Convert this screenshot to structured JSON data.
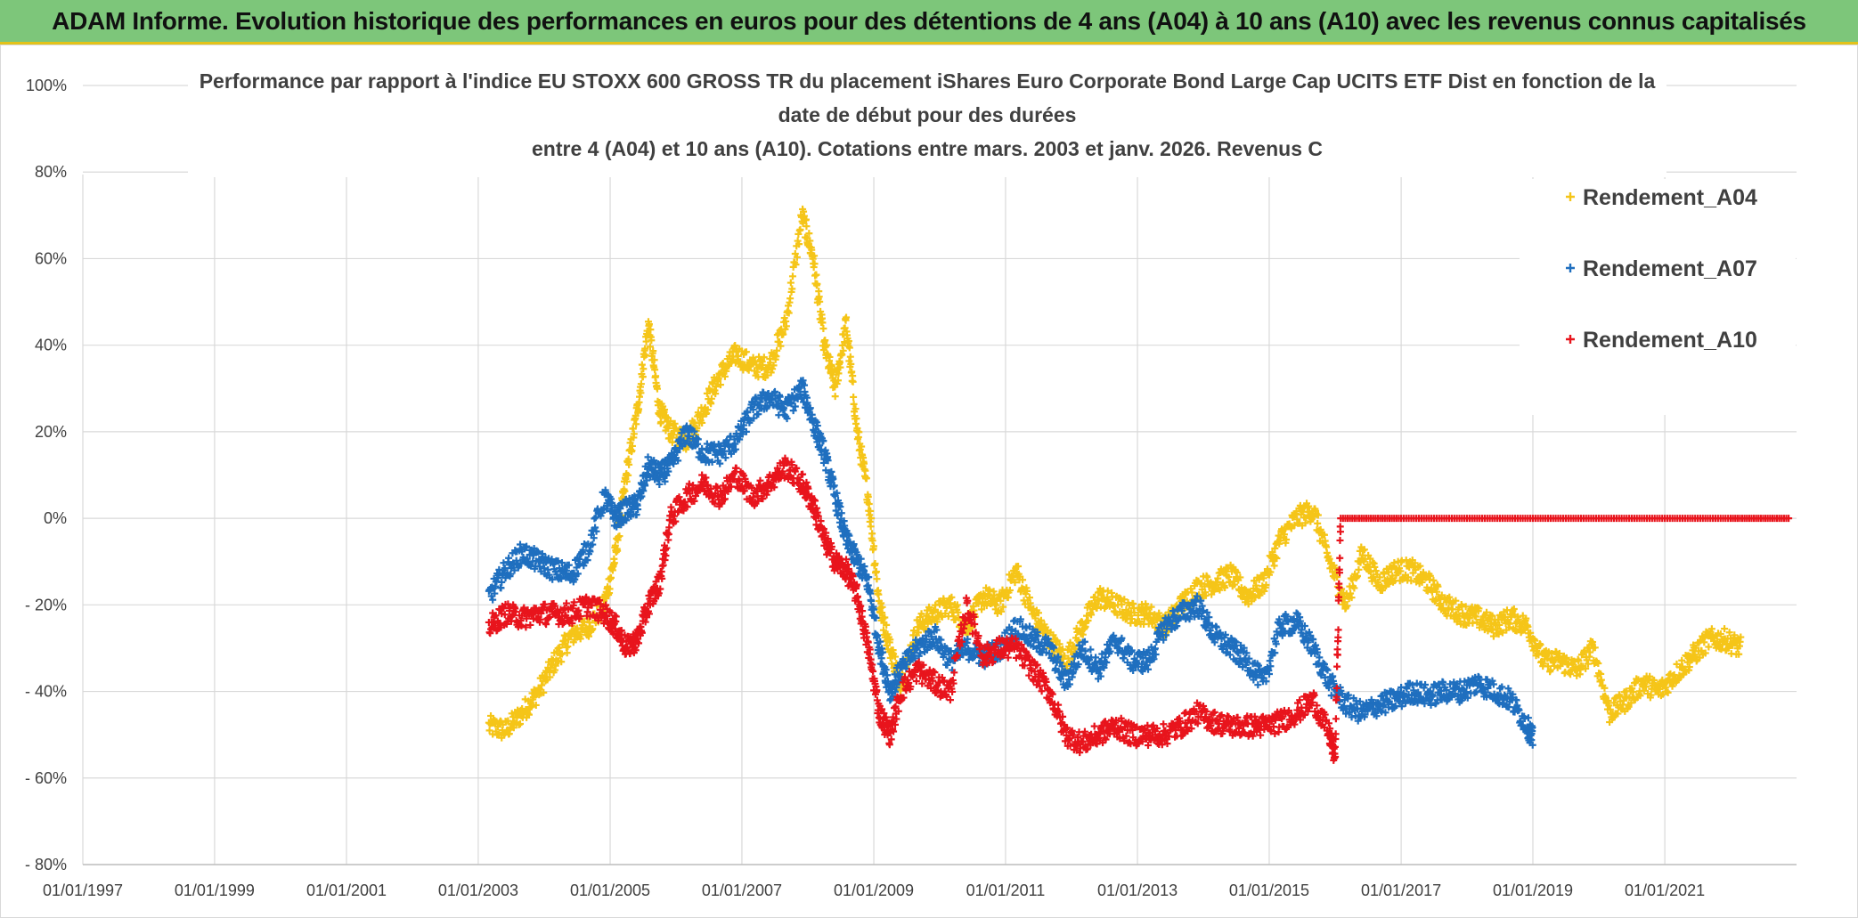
{
  "banner": {
    "title": "ADAM Informe. Evolution historique des performances en euros pour des détentions de 4 ans (A04) à 10 ans (A10) avec les revenus connus capitalisés"
  },
  "colors": {
    "banner_bg": "#7dc67a",
    "Rendement_A04": "#f5c518",
    "Rendement_A07": "#1f6fbf",
    "Rendement_A10": "#e8141c"
  },
  "chart_data": {
    "type": "scatter",
    "title_lines": [
      "Performance  par rapport à l'indice EU STOXX 600 GROSS TR  du placement iShares Euro Corporate Bond Large Cap UCITS ETF Dist en fonction de la",
      "date de début pour des durées",
      "entre 4 (A04) et 10 ans (A10). Cotations entre mars. 2003 et janv. 2026. Revenus C"
    ],
    "x_ticks": [
      "01/01/1997",
      "01/01/1999",
      "01/01/2001",
      "01/01/2003",
      "01/01/2005",
      "01/01/2007",
      "01/01/2009",
      "01/01/2011",
      "01/01/2013",
      "01/01/2015",
      "01/01/2017",
      "01/01/2019",
      "01/01/2021"
    ],
    "xlim": [
      "1997-01-01",
      "2023-01-01"
    ],
    "y_ticks": [
      "100%",
      "80%",
      "60%",
      "40%",
      "20%",
      "0%",
      "- 20%",
      "- 40%",
      "- 60%",
      "- 80%"
    ],
    "ylim": [
      -80,
      100
    ],
    "grid": true,
    "legend_position": "top-right",
    "marker": "+",
    "series": [
      {
        "name": "Rendement_A04",
        "points": [
          [
            "2003-03",
            -48
          ],
          [
            "2003-06",
            -49
          ],
          [
            "2003-09",
            -45
          ],
          [
            "2003-12",
            -40
          ],
          [
            "2004-03",
            -33
          ],
          [
            "2004-06",
            -27
          ],
          [
            "2004-09",
            -25
          ],
          [
            "2004-12",
            -20
          ],
          [
            "2005-02",
            -8
          ],
          [
            "2005-04",
            10
          ],
          [
            "2005-06",
            25
          ],
          [
            "2005-08",
            45
          ],
          [
            "2005-10",
            25
          ],
          [
            "2005-12",
            20
          ],
          [
            "2006-03",
            18
          ],
          [
            "2006-06",
            25
          ],
          [
            "2006-09",
            33
          ],
          [
            "2006-12",
            38
          ],
          [
            "2007-03",
            35
          ],
          [
            "2007-06",
            35
          ],
          [
            "2007-09",
            45
          ],
          [
            "2007-12",
            70
          ],
          [
            "2008-02",
            60
          ],
          [
            "2008-04",
            40
          ],
          [
            "2008-06",
            30
          ],
          [
            "2008-08",
            45
          ],
          [
            "2008-10",
            20
          ],
          [
            "2008-12",
            5
          ],
          [
            "2009-02",
            -20
          ],
          [
            "2009-04",
            -30
          ],
          [
            "2009-06",
            -38
          ],
          [
            "2009-09",
            -25
          ],
          [
            "2009-12",
            -22
          ],
          [
            "2010-03",
            -20
          ],
          [
            "2010-06",
            -25
          ],
          [
            "2010-09",
            -18
          ],
          [
            "2010-12",
            -20
          ],
          [
            "2011-03",
            -12
          ],
          [
            "2011-06",
            -22
          ],
          [
            "2011-09",
            -28
          ],
          [
            "2011-12",
            -33
          ],
          [
            "2012-03",
            -25
          ],
          [
            "2012-06",
            -18
          ],
          [
            "2012-09",
            -20
          ],
          [
            "2012-12",
            -22
          ],
          [
            "2013-03",
            -22
          ],
          [
            "2013-06",
            -25
          ],
          [
            "2013-09",
            -20
          ],
          [
            "2013-12",
            -16
          ],
          [
            "2014-03",
            -15
          ],
          [
            "2014-06",
            -13
          ],
          [
            "2014-09",
            -18
          ],
          [
            "2014-12",
            -15
          ],
          [
            "2015-03",
            -5
          ],
          [
            "2015-06",
            0
          ],
          [
            "2015-09",
            2
          ],
          [
            "2015-12",
            -10
          ],
          [
            "2016-03",
            -20
          ],
          [
            "2016-06",
            -8
          ],
          [
            "2016-09",
            -15
          ],
          [
            "2016-12",
            -12
          ],
          [
            "2017-03",
            -12
          ],
          [
            "2017-06",
            -15
          ],
          [
            "2017-09",
            -20
          ],
          [
            "2017-12",
            -22
          ],
          [
            "2018-03",
            -23
          ],
          [
            "2018-06",
            -25
          ],
          [
            "2018-09",
            -23
          ],
          [
            "2018-12",
            -25
          ],
          [
            "2019-03",
            -33
          ],
          [
            "2019-06",
            -33
          ],
          [
            "2019-09",
            -35
          ],
          [
            "2019-12",
            -30
          ],
          [
            "2020-03",
            -45
          ],
          [
            "2020-06",
            -42
          ],
          [
            "2020-09",
            -38
          ],
          [
            "2020-12",
            -40
          ],
          [
            "2021-03",
            -36
          ],
          [
            "2021-06",
            -32
          ],
          [
            "2021-09",
            -28
          ],
          [
            "2021-12",
            -28
          ],
          [
            "2022-03",
            -30
          ]
        ]
      },
      {
        "name": "Rendement_A07",
        "points": [
          [
            "2003-03",
            -18
          ],
          [
            "2003-06",
            -12
          ],
          [
            "2003-09",
            -8
          ],
          [
            "2003-12",
            -10
          ],
          [
            "2004-03",
            -12
          ],
          [
            "2004-06",
            -13
          ],
          [
            "2004-09",
            -7
          ],
          [
            "2004-12",
            5
          ],
          [
            "2005-02",
            0
          ],
          [
            "2005-04",
            2
          ],
          [
            "2005-06",
            3
          ],
          [
            "2005-08",
            12
          ],
          [
            "2005-10",
            10
          ],
          [
            "2005-12",
            12
          ],
          [
            "2006-03",
            20
          ],
          [
            "2006-06",
            15
          ],
          [
            "2006-09",
            15
          ],
          [
            "2006-12",
            18
          ],
          [
            "2007-03",
            25
          ],
          [
            "2007-06",
            28
          ],
          [
            "2007-09",
            25
          ],
          [
            "2007-12",
            30
          ],
          [
            "2008-02",
            22
          ],
          [
            "2008-04",
            15
          ],
          [
            "2008-06",
            5
          ],
          [
            "2008-08",
            -5
          ],
          [
            "2008-10",
            -10
          ],
          [
            "2008-12",
            -15
          ],
          [
            "2009-02",
            -30
          ],
          [
            "2009-04",
            -40
          ],
          [
            "2009-06",
            -35
          ],
          [
            "2009-09",
            -30
          ],
          [
            "2009-12",
            -27
          ],
          [
            "2010-03",
            -33
          ],
          [
            "2010-06",
            -30
          ],
          [
            "2010-09",
            -32
          ],
          [
            "2010-12",
            -30
          ],
          [
            "2011-03",
            -25
          ],
          [
            "2011-06",
            -28
          ],
          [
            "2011-09",
            -30
          ],
          [
            "2011-12",
            -38
          ],
          [
            "2012-03",
            -30
          ],
          [
            "2012-06",
            -35
          ],
          [
            "2012-09",
            -28
          ],
          [
            "2012-12",
            -33
          ],
          [
            "2013-03",
            -33
          ],
          [
            "2013-06",
            -25
          ],
          [
            "2013-09",
            -22
          ],
          [
            "2013-12",
            -20
          ],
          [
            "2014-03",
            -27
          ],
          [
            "2014-06",
            -30
          ],
          [
            "2014-09",
            -33
          ],
          [
            "2014-12",
            -38
          ],
          [
            "2015-03",
            -25
          ],
          [
            "2015-06",
            -24
          ],
          [
            "2015-09",
            -30
          ],
          [
            "2015-12",
            -38
          ],
          [
            "2016-03",
            -43
          ],
          [
            "2016-06",
            -45
          ],
          [
            "2016-09",
            -43
          ],
          [
            "2016-12",
            -42
          ],
          [
            "2017-03",
            -40
          ],
          [
            "2017-06",
            -41
          ],
          [
            "2017-09",
            -40
          ],
          [
            "2017-12",
            -40
          ],
          [
            "2018-03",
            -38
          ],
          [
            "2018-06",
            -40
          ],
          [
            "2018-09",
            -42
          ],
          [
            "2018-12",
            -48
          ],
          [
            "2019-01",
            -51
          ]
        ]
      },
      {
        "name": "Rendement_A10",
        "points": [
          [
            "2003-03",
            -25
          ],
          [
            "2003-06",
            -22
          ],
          [
            "2003-09",
            -23
          ],
          [
            "2003-12",
            -22
          ],
          [
            "2004-03",
            -22
          ],
          [
            "2004-06",
            -22
          ],
          [
            "2004-09",
            -20
          ],
          [
            "2004-12",
            -22
          ],
          [
            "2005-02",
            -25
          ],
          [
            "2005-04",
            -30
          ],
          [
            "2005-06",
            -28
          ],
          [
            "2005-08",
            -20
          ],
          [
            "2005-10",
            -15
          ],
          [
            "2005-12",
            0
          ],
          [
            "2006-03",
            5
          ],
          [
            "2006-06",
            8
          ],
          [
            "2006-09",
            5
          ],
          [
            "2006-12",
            10
          ],
          [
            "2007-03",
            5
          ],
          [
            "2007-06",
            8
          ],
          [
            "2007-09",
            12
          ],
          [
            "2007-12",
            8
          ],
          [
            "2008-02",
            3
          ],
          [
            "2008-04",
            -5
          ],
          [
            "2008-06",
            -10
          ],
          [
            "2008-08",
            -12
          ],
          [
            "2008-10",
            -18
          ],
          [
            "2008-12",
            -30
          ],
          [
            "2009-02",
            -45
          ],
          [
            "2009-04",
            -50
          ],
          [
            "2009-06",
            -40
          ],
          [
            "2009-09",
            -35
          ],
          [
            "2009-12",
            -38
          ],
          [
            "2010-03",
            -40
          ],
          [
            "2010-06",
            -20
          ],
          [
            "2010-09",
            -32
          ],
          [
            "2010-12",
            -30
          ],
          [
            "2011-03",
            -30
          ],
          [
            "2011-06",
            -35
          ],
          [
            "2011-09",
            -40
          ],
          [
            "2011-12",
            -50
          ],
          [
            "2012-03",
            -52
          ],
          [
            "2012-06",
            -50
          ],
          [
            "2012-09",
            -48
          ],
          [
            "2012-12",
            -50
          ],
          [
            "2013-03",
            -50
          ],
          [
            "2013-06",
            -50
          ],
          [
            "2013-09",
            -48
          ],
          [
            "2013-12",
            -45
          ],
          [
            "2014-03",
            -47
          ],
          [
            "2014-06",
            -48
          ],
          [
            "2014-09",
            -48
          ],
          [
            "2014-12",
            -48
          ],
          [
            "2015-03",
            -47
          ],
          [
            "2015-06",
            -45
          ],
          [
            "2015-09",
            -42
          ],
          [
            "2015-12",
            -50
          ],
          [
            "2016-01",
            -55
          ],
          [
            "2016-02",
            0
          ],
          [
            "2017-01",
            0
          ],
          [
            "2018-01",
            0
          ],
          [
            "2019-01",
            0
          ],
          [
            "2020-01",
            0
          ],
          [
            "2021-01",
            0
          ],
          [
            "2022-01",
            0
          ],
          [
            "2022-12",
            0
          ]
        ]
      }
    ]
  }
}
